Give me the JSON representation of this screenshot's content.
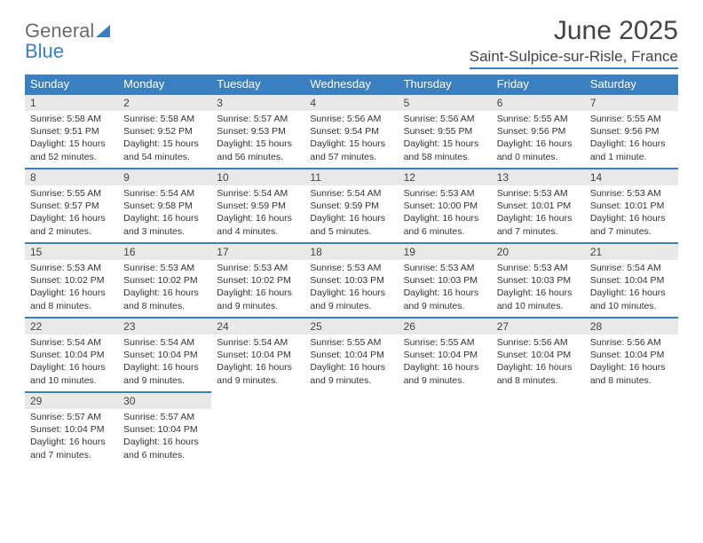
{
  "brand": {
    "part1": "General",
    "part2": "Blue"
  },
  "title": {
    "month": "June 2025",
    "location": "Saint-Sulpice-sur-Risle, France"
  },
  "colors": {
    "accent": "#3b7fbf",
    "header_text": "#ffffff",
    "daynum_bg": "#e9e9e9",
    "text": "#333333",
    "logo_gray": "#6a6a6a"
  },
  "weekdays": [
    "Sunday",
    "Monday",
    "Tuesday",
    "Wednesday",
    "Thursday",
    "Friday",
    "Saturday"
  ],
  "weeks": [
    [
      {
        "n": "1",
        "sr": "Sunrise: 5:58 AM",
        "ss": "Sunset: 9:51 PM",
        "dl1": "Daylight: 15 hours",
        "dl2": "and 52 minutes."
      },
      {
        "n": "2",
        "sr": "Sunrise: 5:58 AM",
        "ss": "Sunset: 9:52 PM",
        "dl1": "Daylight: 15 hours",
        "dl2": "and 54 minutes."
      },
      {
        "n": "3",
        "sr": "Sunrise: 5:57 AM",
        "ss": "Sunset: 9:53 PM",
        "dl1": "Daylight: 15 hours",
        "dl2": "and 56 minutes."
      },
      {
        "n": "4",
        "sr": "Sunrise: 5:56 AM",
        "ss": "Sunset: 9:54 PM",
        "dl1": "Daylight: 15 hours",
        "dl2": "and 57 minutes."
      },
      {
        "n": "5",
        "sr": "Sunrise: 5:56 AM",
        "ss": "Sunset: 9:55 PM",
        "dl1": "Daylight: 15 hours",
        "dl2": "and 58 minutes."
      },
      {
        "n": "6",
        "sr": "Sunrise: 5:55 AM",
        "ss": "Sunset: 9:56 PM",
        "dl1": "Daylight: 16 hours",
        "dl2": "and 0 minutes."
      },
      {
        "n": "7",
        "sr": "Sunrise: 5:55 AM",
        "ss": "Sunset: 9:56 PM",
        "dl1": "Daylight: 16 hours",
        "dl2": "and 1 minute."
      }
    ],
    [
      {
        "n": "8",
        "sr": "Sunrise: 5:55 AM",
        "ss": "Sunset: 9:57 PM",
        "dl1": "Daylight: 16 hours",
        "dl2": "and 2 minutes."
      },
      {
        "n": "9",
        "sr": "Sunrise: 5:54 AM",
        "ss": "Sunset: 9:58 PM",
        "dl1": "Daylight: 16 hours",
        "dl2": "and 3 minutes."
      },
      {
        "n": "10",
        "sr": "Sunrise: 5:54 AM",
        "ss": "Sunset: 9:59 PM",
        "dl1": "Daylight: 16 hours",
        "dl2": "and 4 minutes."
      },
      {
        "n": "11",
        "sr": "Sunrise: 5:54 AM",
        "ss": "Sunset: 9:59 PM",
        "dl1": "Daylight: 16 hours",
        "dl2": "and 5 minutes."
      },
      {
        "n": "12",
        "sr": "Sunrise: 5:53 AM",
        "ss": "Sunset: 10:00 PM",
        "dl1": "Daylight: 16 hours",
        "dl2": "and 6 minutes."
      },
      {
        "n": "13",
        "sr": "Sunrise: 5:53 AM",
        "ss": "Sunset: 10:01 PM",
        "dl1": "Daylight: 16 hours",
        "dl2": "and 7 minutes."
      },
      {
        "n": "14",
        "sr": "Sunrise: 5:53 AM",
        "ss": "Sunset: 10:01 PM",
        "dl1": "Daylight: 16 hours",
        "dl2": "and 7 minutes."
      }
    ],
    [
      {
        "n": "15",
        "sr": "Sunrise: 5:53 AM",
        "ss": "Sunset: 10:02 PM",
        "dl1": "Daylight: 16 hours",
        "dl2": "and 8 minutes."
      },
      {
        "n": "16",
        "sr": "Sunrise: 5:53 AM",
        "ss": "Sunset: 10:02 PM",
        "dl1": "Daylight: 16 hours",
        "dl2": "and 8 minutes."
      },
      {
        "n": "17",
        "sr": "Sunrise: 5:53 AM",
        "ss": "Sunset: 10:02 PM",
        "dl1": "Daylight: 16 hours",
        "dl2": "and 9 minutes."
      },
      {
        "n": "18",
        "sr": "Sunrise: 5:53 AM",
        "ss": "Sunset: 10:03 PM",
        "dl1": "Daylight: 16 hours",
        "dl2": "and 9 minutes."
      },
      {
        "n": "19",
        "sr": "Sunrise: 5:53 AM",
        "ss": "Sunset: 10:03 PM",
        "dl1": "Daylight: 16 hours",
        "dl2": "and 9 minutes."
      },
      {
        "n": "20",
        "sr": "Sunrise: 5:53 AM",
        "ss": "Sunset: 10:03 PM",
        "dl1": "Daylight: 16 hours",
        "dl2": "and 10 minutes."
      },
      {
        "n": "21",
        "sr": "Sunrise: 5:54 AM",
        "ss": "Sunset: 10:04 PM",
        "dl1": "Daylight: 16 hours",
        "dl2": "and 10 minutes."
      }
    ],
    [
      {
        "n": "22",
        "sr": "Sunrise: 5:54 AM",
        "ss": "Sunset: 10:04 PM",
        "dl1": "Daylight: 16 hours",
        "dl2": "and 10 minutes."
      },
      {
        "n": "23",
        "sr": "Sunrise: 5:54 AM",
        "ss": "Sunset: 10:04 PM",
        "dl1": "Daylight: 16 hours",
        "dl2": "and 9 minutes."
      },
      {
        "n": "24",
        "sr": "Sunrise: 5:54 AM",
        "ss": "Sunset: 10:04 PM",
        "dl1": "Daylight: 16 hours",
        "dl2": "and 9 minutes."
      },
      {
        "n": "25",
        "sr": "Sunrise: 5:55 AM",
        "ss": "Sunset: 10:04 PM",
        "dl1": "Daylight: 16 hours",
        "dl2": "and 9 minutes."
      },
      {
        "n": "26",
        "sr": "Sunrise: 5:55 AM",
        "ss": "Sunset: 10:04 PM",
        "dl1": "Daylight: 16 hours",
        "dl2": "and 9 minutes."
      },
      {
        "n": "27",
        "sr": "Sunrise: 5:56 AM",
        "ss": "Sunset: 10:04 PM",
        "dl1": "Daylight: 16 hours",
        "dl2": "and 8 minutes."
      },
      {
        "n": "28",
        "sr": "Sunrise: 5:56 AM",
        "ss": "Sunset: 10:04 PM",
        "dl1": "Daylight: 16 hours",
        "dl2": "and 8 minutes."
      }
    ],
    [
      {
        "n": "29",
        "sr": "Sunrise: 5:57 AM",
        "ss": "Sunset: 10:04 PM",
        "dl1": "Daylight: 16 hours",
        "dl2": "and 7 minutes."
      },
      {
        "n": "30",
        "sr": "Sunrise: 5:57 AM",
        "ss": "Sunset: 10:04 PM",
        "dl1": "Daylight: 16 hours",
        "dl2": "and 6 minutes."
      },
      null,
      null,
      null,
      null,
      null
    ]
  ]
}
